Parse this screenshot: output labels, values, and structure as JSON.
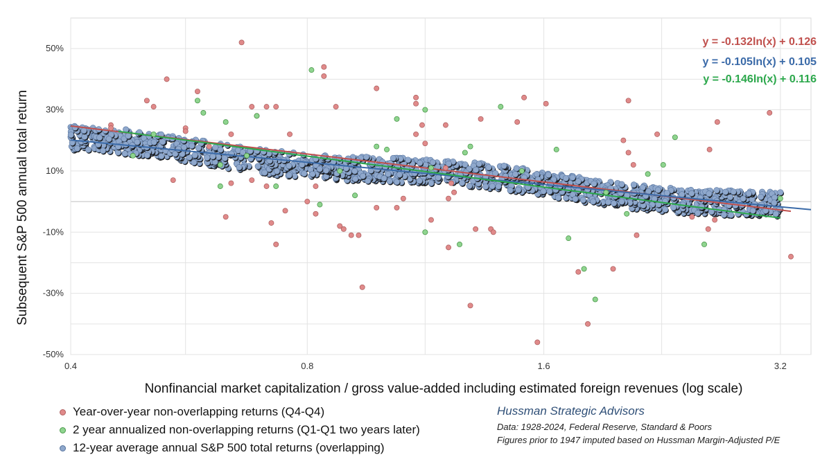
{
  "chart_data": {
    "type": "scatter",
    "xlabel": "Nonfinancial market capitalization / gross value-added including estimated foreign revenues (log scale)",
    "ylabel": "Subsequent S&P 500 annual total return",
    "x_scale": "log",
    "xlim": [
      0.4,
      3.5
    ],
    "ylim": [
      -0.5,
      0.6
    ],
    "x_ticks": [
      {
        "value": 0.4,
        "label": "0.4"
      },
      {
        "value": 0.8,
        "label": "0.8"
      },
      {
        "value": 1.6,
        "label": "1.6"
      },
      {
        "value": 3.2,
        "label": "3.2"
      }
    ],
    "y_ticks": [
      {
        "value": 0.5,
        "label": "50%"
      },
      {
        "value": 0.3,
        "label": "30%"
      },
      {
        "value": 0.1,
        "label": "10%"
      },
      {
        "value": -0.1,
        "label": "-10%"
      },
      {
        "value": -0.3,
        "label": "-30%"
      },
      {
        "value": -0.5,
        "label": "-50%"
      }
    ],
    "grid": true,
    "legend_position": "bottom-left",
    "series": [
      {
        "name": "Year-over-year non-overlapping returns (Q4-Q4)",
        "color": "#e08a8a",
        "trend": {
          "a": -0.132,
          "b": 0.126,
          "label": "y = -0.132ln(x) + 0.126",
          "color": "#c0504d",
          "x_range": [
            0.4,
            3.3
          ]
        },
        "points": [
          [
            0.66,
            0.52
          ],
          [
            0.84,
            0.44
          ],
          [
            0.84,
            0.41
          ],
          [
            0.53,
            0.4
          ],
          [
            0.98,
            0.37
          ],
          [
            0.58,
            0.36
          ],
          [
            1.1,
            0.34
          ],
          [
            1.1,
            0.32
          ],
          [
            0.5,
            0.33
          ],
          [
            0.51,
            0.31
          ],
          [
            0.68,
            0.31
          ],
          [
            0.71,
            0.31
          ],
          [
            0.73,
            0.31
          ],
          [
            0.87,
            0.31
          ],
          [
            1.61,
            0.32
          ],
          [
            2.05,
            0.33
          ],
          [
            1.51,
            0.34
          ],
          [
            1.33,
            0.27
          ],
          [
            1.2,
            0.25
          ],
          [
            1.12,
            0.25
          ],
          [
            1.48,
            0.26
          ],
          [
            2.66,
            0.26
          ],
          [
            3.1,
            0.29
          ],
          [
            0.45,
            0.25
          ],
          [
            0.45,
            0.24
          ],
          [
            0.56,
            0.24
          ],
          [
            0.56,
            0.23
          ],
          [
            0.64,
            0.22
          ],
          [
            0.69,
            0.28
          ],
          [
            1.1,
            0.22
          ],
          [
            1.13,
            0.19
          ],
          [
            2.02,
            0.2
          ],
          [
            2.23,
            0.22
          ],
          [
            2.6,
            0.17
          ],
          [
            1.2,
            0.11
          ],
          [
            2.08,
            0.12
          ],
          [
            0.76,
            0.22
          ],
          [
            0.6,
            0.18
          ],
          [
            2.05,
            0.16
          ],
          [
            1.22,
            0.06
          ],
          [
            1.21,
            0.01
          ],
          [
            1.23,
            0.03
          ],
          [
            0.54,
            0.07
          ],
          [
            0.68,
            0.07
          ],
          [
            0.71,
            0.05
          ],
          [
            0.64,
            0.06
          ],
          [
            0.8,
            0.0
          ],
          [
            0.82,
            -0.04
          ],
          [
            0.75,
            -0.03
          ],
          [
            0.98,
            -0.02
          ],
          [
            1.06,
            0.01
          ],
          [
            1.04,
            -0.02
          ],
          [
            1.15,
            -0.06
          ],
          [
            0.82,
            0.05
          ],
          [
            0.63,
            -0.05
          ],
          [
            0.72,
            -0.07
          ],
          [
            0.73,
            -0.14
          ],
          [
            0.88,
            -0.08
          ],
          [
            0.89,
            -0.09
          ],
          [
            0.91,
            -0.11
          ],
          [
            0.93,
            -0.11
          ],
          [
            1.31,
            -0.09
          ],
          [
            1.37,
            -0.09
          ],
          [
            1.38,
            -0.1
          ],
          [
            1.21,
            -0.15
          ],
          [
            2.47,
            -0.05
          ],
          [
            2.59,
            -0.09
          ],
          [
            2.64,
            -0.06
          ],
          [
            2.1,
            -0.11
          ],
          [
            3.3,
            -0.18
          ],
          [
            1.77,
            -0.23
          ],
          [
            1.96,
            -0.22
          ],
          [
            1.82,
            -0.4
          ],
          [
            1.29,
            -0.34
          ],
          [
            0.94,
            -0.28
          ],
          [
            1.57,
            -0.46
          ]
        ]
      },
      {
        "name": "2 year annualized non-overlapping returns (Q1-Q1 two years later)",
        "color": "#8fd48f",
        "trend": {
          "a": -0.146,
          "b": 0.116,
          "label": "y = -0.146ln(x) + 0.116",
          "color": "#2ca84c",
          "x_range": [
            0.46,
            3.2
          ]
        },
        "points": [
          [
            0.81,
            0.43
          ],
          [
            0.58,
            0.33
          ],
          [
            0.59,
            0.29
          ],
          [
            0.63,
            0.26
          ],
          [
            0.69,
            0.28
          ],
          [
            1.13,
            0.3
          ],
          [
            1.04,
            0.27
          ],
          [
            1.41,
            0.31
          ],
          [
            0.51,
            0.22
          ],
          [
            1.27,
            0.16
          ],
          [
            1.29,
            0.18
          ],
          [
            0.98,
            0.18
          ],
          [
            1.01,
            0.17
          ],
          [
            1.15,
            0.11
          ],
          [
            1.66,
            0.17
          ],
          [
            2.35,
            0.21
          ],
          [
            2.27,
            0.12
          ],
          [
            2.17,
            0.09
          ],
          [
            0.62,
            0.12
          ],
          [
            0.62,
            0.05
          ],
          [
            0.73,
            0.05
          ],
          [
            0.83,
            -0.01
          ],
          [
            0.92,
            0.02
          ],
          [
            1.13,
            -0.1
          ],
          [
            1.25,
            -0.14
          ],
          [
            1.92,
            0.03
          ],
          [
            2.04,
            -0.04
          ],
          [
            2.56,
            -0.14
          ],
          [
            3.2,
            0.01
          ],
          [
            1.72,
            -0.12
          ],
          [
            1.8,
            -0.22
          ],
          [
            1.86,
            -0.32
          ],
          [
            0.48,
            0.15
          ],
          [
            0.67,
            0.15
          ],
          [
            0.88,
            0.1
          ],
          [
            1.5,
            0.1
          ]
        ]
      },
      {
        "name": "12-year average annual S&P 500 total returns (overlapping)",
        "color": "#8fa8cc",
        "trend": {
          "a": -0.105,
          "b": 0.105,
          "label": "y = -0.105ln(x) + 0.105",
          "color": "#3a6aa8",
          "x_range": [
            0.4,
            3.5
          ]
        },
        "points": []
      }
    ]
  },
  "legend": {
    "items": [
      {
        "label": "Year-over-year non-overlapping returns (Q4-Q4)",
        "color": "#e08a8a",
        "border": "#b06060"
      },
      {
        "label": "2 year annualized non-overlapping returns (Q1-Q1 two years later)",
        "color": "#8fd48f",
        "border": "#4a9a4a"
      },
      {
        "label": "12-year average annual S&P 500 total returns (overlapping)",
        "color": "#8fa8cc",
        "border": "#56739d"
      }
    ]
  },
  "source": {
    "org": "Hussman Strategic Advisors",
    "data_line": "Data: 1928-2024, Federal Reserve, Standard & Poors",
    "note_line": "Figures prior to 1947 imputed based on Hussman Margin-Adjusted P/E"
  }
}
